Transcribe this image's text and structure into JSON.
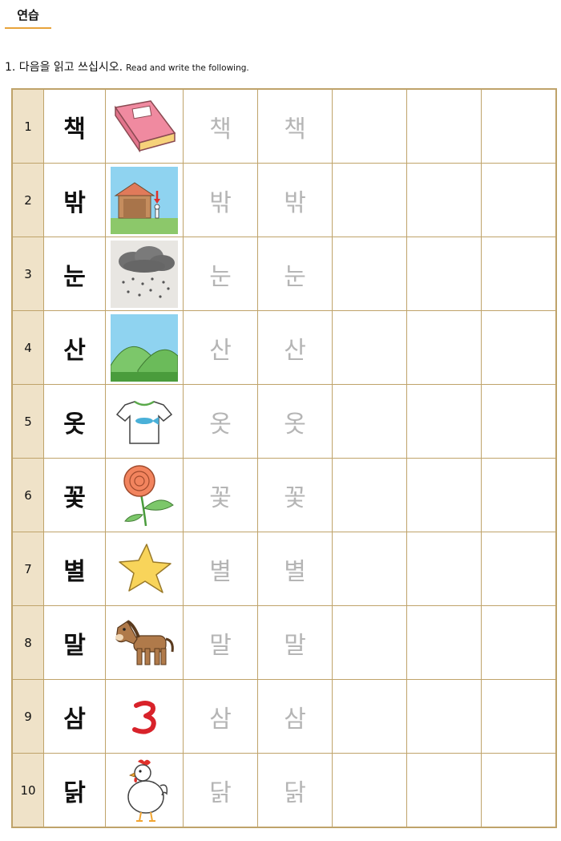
{
  "section_title": "연습",
  "instruction": {
    "ko": "1. 다음을 읽고 쓰십시오.",
    "en": "Read and write the following."
  },
  "rows": [
    {
      "num": "1",
      "syllable": "책",
      "picture": "book-icon"
    },
    {
      "num": "2",
      "syllable": "밖",
      "picture": "outside-house-icon"
    },
    {
      "num": "3",
      "syllable": "눈",
      "picture": "snow-cloud-icon"
    },
    {
      "num": "4",
      "syllable": "산",
      "picture": "mountain-icon"
    },
    {
      "num": "5",
      "syllable": "옷",
      "picture": "tshirt-icon"
    },
    {
      "num": "6",
      "syllable": "꽃",
      "picture": "flower-icon"
    },
    {
      "num": "7",
      "syllable": "별",
      "picture": "star-icon"
    },
    {
      "num": "8",
      "syllable": "말",
      "picture": "horse-icon"
    },
    {
      "num": "9",
      "syllable": "삼",
      "picture": "number-three-icon"
    },
    {
      "num": "10",
      "syllable": "닭",
      "picture": "chicken-icon"
    }
  ],
  "colors": {
    "grid_border": "#bfa36a",
    "number_cell": "#efe2c8",
    "trace_text": "#b5b5b5",
    "title_underline": "#e8a33a"
  }
}
